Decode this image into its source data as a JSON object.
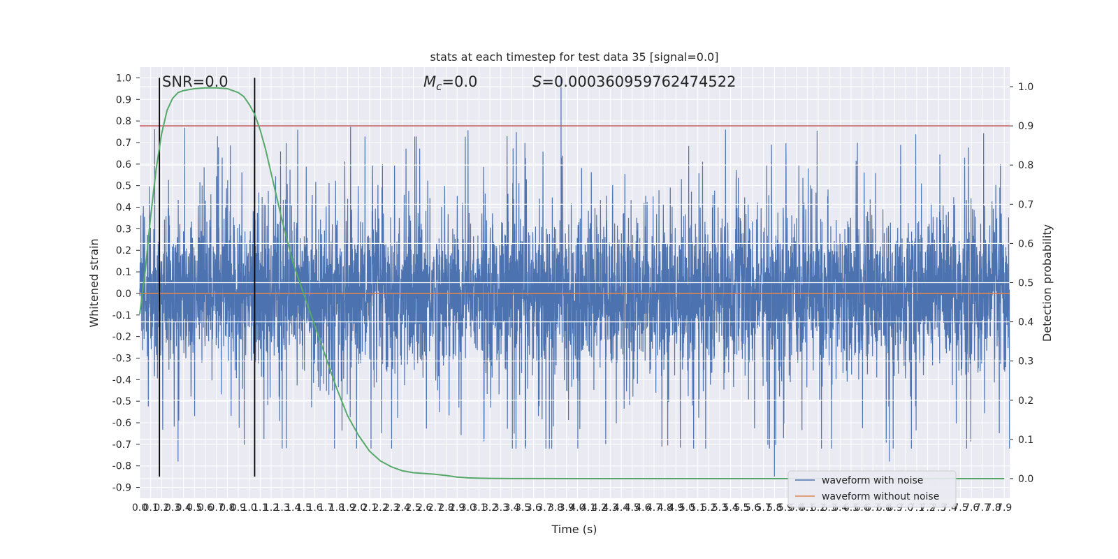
{
  "chart_data": {
    "type": "line",
    "title": "stats at each timestep for test data 35 [signal=0.0]",
    "xlabel": "Time (s)",
    "ylabel": "Whitened strain",
    "y2label": "Detection probability",
    "xlim": [
      0.0,
      7.95
    ],
    "ylim": [
      -0.95,
      1.05
    ],
    "y2lim": [
      -0.05,
      1.05
    ],
    "x_ticks": [
      "0.0",
      "0.1",
      "0.2",
      "0.3",
      "0.4",
      "0.5",
      "0.6",
      "0.7",
      "0.8",
      "0.9",
      "1.0",
      "1.1",
      "1.2",
      "1.3",
      "1.4",
      "1.5",
      "1.6",
      "1.7",
      "1.8",
      "1.9",
      "2.0",
      "2.1",
      "2.2",
      "2.3",
      "2.4",
      "2.5",
      "2.6",
      "2.7",
      "2.8",
      "2.9",
      "3.0",
      "3.1",
      "3.2",
      "3.3",
      "3.4",
      "3.5",
      "3.6",
      "3.7",
      "3.8",
      "3.9",
      "4.0",
      "4.1",
      "4.2",
      "4.3",
      "4.4",
      "4.5",
      "4.6",
      "4.7",
      "4.8",
      "4.9",
      "5.0",
      "5.1",
      "5.2",
      "5.3",
      "5.4",
      "5.5",
      "5.6",
      "5.7",
      "5.8",
      "5.9",
      "6.0",
      "6.1",
      "6.2",
      "6.3",
      "6.4",
      "6.5",
      "6.6",
      "6.7",
      "6.8",
      "6.9",
      "7.0",
      "7.1",
      "7.2",
      "7.3",
      "7.4",
      "7.5",
      "7.6",
      "7.7",
      "7.8",
      "7.9"
    ],
    "y_ticks": [
      "-0.9",
      "-0.8",
      "-0.7",
      "-0.6",
      "-0.5",
      "-0.4",
      "-0.3",
      "-0.2",
      "-0.1",
      "0.0",
      "0.1",
      "0.2",
      "0.3",
      "0.4",
      "0.5",
      "0.6",
      "0.7",
      "0.8",
      "0.9",
      "1.0"
    ],
    "y2_ticks": [
      "0.0",
      "0.1",
      "0.2",
      "0.3",
      "0.4",
      "0.5",
      "0.6",
      "0.7",
      "0.8",
      "0.9",
      "1.0"
    ],
    "annotations": {
      "snr": "SNR=0.0",
      "mc_symbol": "M",
      "mc_sub": "c",
      "mc_value": "=0.0",
      "s_symbol": "S",
      "s_value": "=0.000360959762474522"
    },
    "noise": {
      "name": "waveform with noise",
      "color": "#4c72b0",
      "sample_rate": 600,
      "base_amp": 0.32,
      "spike_max": 0.78,
      "max_spike": {
        "x": 3.85,
        "y": 1.0
      },
      "min_spikes": [
        {
          "x": 5.8,
          "y": -0.85
        },
        {
          "x": 6.85,
          "y": -0.78
        },
        {
          "x": 0.35,
          "y": -0.78
        }
      ]
    },
    "clean": {
      "name": "waveform without noise",
      "color": "#dd8452",
      "value": 0.0
    },
    "probability": {
      "color": "#55a868",
      "x": [
        0.0,
        0.05,
        0.1,
        0.15,
        0.2,
        0.25,
        0.3,
        0.35,
        0.4,
        0.5,
        0.6,
        0.7,
        0.8,
        0.9,
        0.95,
        1.0,
        1.05,
        1.1,
        1.15,
        1.2,
        1.3,
        1.4,
        1.5,
        1.6,
        1.7,
        1.8,
        1.9,
        2.0,
        2.1,
        2.2,
        2.3,
        2.4,
        2.5,
        2.6,
        2.7,
        2.8,
        2.9,
        3.0,
        3.1,
        3.2,
        3.4,
        3.6,
        4.0,
        5.0,
        6.0,
        7.0,
        7.9
      ],
      "y": [
        0.42,
        0.53,
        0.67,
        0.79,
        0.88,
        0.94,
        0.97,
        0.985,
        0.99,
        0.995,
        0.997,
        0.997,
        0.995,
        0.985,
        0.975,
        0.955,
        0.93,
        0.89,
        0.84,
        0.78,
        0.66,
        0.55,
        0.47,
        0.39,
        0.31,
        0.23,
        0.16,
        0.11,
        0.07,
        0.045,
        0.03,
        0.02,
        0.015,
        0.013,
        0.011,
        0.008,
        0.004,
        0.002,
        0.001,
        0.0005,
        0.0002,
        0.0001,
        0.0,
        0.0,
        0.0,
        0.0,
        0.0
      ]
    },
    "threshold": {
      "color": "#c44e52",
      "value": 0.9
    },
    "vlines": {
      "color": "#000000",
      "x": [
        0.18,
        1.05
      ],
      "ymin": -0.85,
      "ymax": 1.0
    },
    "legend": {
      "placement": "lower-right",
      "entries": [
        "waveform with noise",
        "waveform without noise"
      ]
    },
    "grid": true,
    "style": {
      "background": "#eaeaf2",
      "grid_color": "#ffffff"
    }
  }
}
